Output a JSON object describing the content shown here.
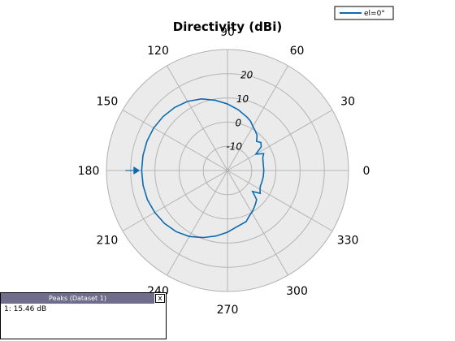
{
  "chart_data": {
    "type": "polar-line",
    "title": "Directivity (dBi)",
    "angle_ticks": [
      "0",
      "30",
      "60",
      "90",
      "120",
      "150",
      "180",
      "210",
      "240",
      "270",
      "300",
      "330"
    ],
    "angle_tick_values": [
      0,
      30,
      60,
      90,
      120,
      150,
      180,
      210,
      240,
      270,
      300,
      330
    ],
    "radial_ticks": [
      "-10",
      "0",
      "10",
      "20"
    ],
    "radial_tick_values": [
      -10,
      0,
      10,
      20
    ],
    "rlim": [
      -20,
      30
    ],
    "radial_label_angle_deg": 80,
    "grid": true,
    "legend_position": "top-right",
    "color": "#0b6bb0",
    "series": [
      {
        "name": "el=0°",
        "angles_deg": [
          0,
          10,
          20,
          25,
          30,
          35,
          40,
          45,
          50,
          55,
          60,
          65,
          70,
          80,
          90,
          100,
          110,
          120,
          130,
          140,
          150,
          160,
          170,
          180,
          190,
          200,
          210,
          220,
          230,
          240,
          250,
          260,
          270,
          280,
          290,
          295,
          300,
          305,
          310,
          315,
          320,
          325,
          330,
          335,
          340,
          350,
          360
        ],
        "values_db": [
          -5.0,
          -5.0,
          -4.5,
          -3.5,
          -6.5,
          -3.0,
          -2.0,
          -3.0,
          -1.0,
          0.0,
          1.0,
          2.5,
          3.5,
          5.5,
          7.5,
          9.5,
          11.5,
          13.0,
          14.0,
          14.7,
          15.2,
          15.4,
          15.46,
          15.46,
          15.4,
          15.2,
          14.7,
          14.0,
          13.0,
          11.5,
          9.5,
          7.5,
          5.5,
          3.5,
          2.5,
          1.0,
          0.0,
          -1.0,
          -2.0,
          -3.0,
          -6.5,
          -3.5,
          -4.5,
          -5.0,
          -5.0,
          -5.0,
          -5.0
        ]
      }
    ],
    "peak_marker": {
      "angle_deg": 180,
      "value_db": 15.46
    }
  },
  "peaks_panel": {
    "title": "Peaks (Dataset 1)",
    "close_label": "x",
    "entries": [
      "1: 15.46 dB"
    ]
  }
}
